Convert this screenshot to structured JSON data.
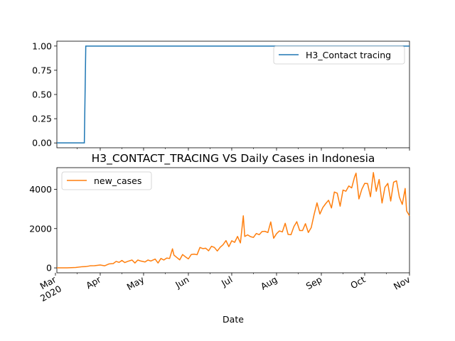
{
  "chart_data": [
    {
      "type": "line",
      "title": "",
      "xlabel": "",
      "ylabel": "",
      "ylim": [
        -0.05,
        1.05
      ],
      "yticks": [
        "0.00",
        "0.25",
        "0.50",
        "0.75",
        "1.00"
      ],
      "legend_position": "top-right",
      "x_range": [
        "2020-03-02",
        "2020-11-01"
      ],
      "series": [
        {
          "name": "H3_Contact tracing",
          "color": "#1f77b4",
          "points": [
            [
              "2020-03-02",
              0
            ],
            [
              "2020-03-21",
              0
            ],
            [
              "2020-03-22",
              1
            ],
            [
              "2020-11-01",
              1
            ]
          ]
        }
      ]
    },
    {
      "type": "line",
      "title": "H3_CONTACT_TRACING VS Daily Cases in Indonesia",
      "xlabel": "Date",
      "ylabel": "",
      "ylim": [
        -250,
        5100
      ],
      "yticks": [
        "0",
        "2000",
        "4000"
      ],
      "legend_position": "top-left",
      "x_range": [
        "2020-03-02",
        "2020-11-01"
      ],
      "xticks": [
        {
          "date": "2020-03-01",
          "label": "Mar",
          "sublabel": "2020"
        },
        {
          "date": "2020-04-01",
          "label": "Apr"
        },
        {
          "date": "2020-05-01",
          "label": "May"
        },
        {
          "date": "2020-06-01",
          "label": "Jun"
        },
        {
          "date": "2020-07-01",
          "label": "Jul"
        },
        {
          "date": "2020-08-01",
          "label": "Aug"
        },
        {
          "date": "2020-09-01",
          "label": "Sep"
        },
        {
          "date": "2020-10-01",
          "label": "Oct"
        },
        {
          "date": "2020-11-01",
          "label": "Nov"
        }
      ],
      "series": [
        {
          "name": "new_cases",
          "color": "#ff7f0e",
          "points": [
            [
              "2020-03-02",
              2
            ],
            [
              "2020-03-09",
              4
            ],
            [
              "2020-03-15",
              21
            ],
            [
              "2020-03-19",
              55
            ],
            [
              "2020-03-22",
              64
            ],
            [
              "2020-03-25",
              105
            ],
            [
              "2020-03-28",
              110
            ],
            [
              "2020-04-01",
              149
            ],
            [
              "2020-04-04",
              106
            ],
            [
              "2020-04-07",
              200
            ],
            [
              "2020-04-10",
              220
            ],
            [
              "2020-04-12",
              330
            ],
            [
              "2020-04-14",
              280
            ],
            [
              "2020-04-16",
              380
            ],
            [
              "2020-04-18",
              270
            ],
            [
              "2020-04-20",
              330
            ],
            [
              "2020-04-23",
              400
            ],
            [
              "2020-04-25",
              250
            ],
            [
              "2020-04-27",
              400
            ],
            [
              "2020-04-29",
              350
            ],
            [
              "2020-05-02",
              300
            ],
            [
              "2020-05-04",
              400
            ],
            [
              "2020-05-06",
              350
            ],
            [
              "2020-05-09",
              450
            ],
            [
              "2020-05-11",
              250
            ],
            [
              "2020-05-13",
              480
            ],
            [
              "2020-05-15",
              400
            ],
            [
              "2020-05-17",
              500
            ],
            [
              "2020-05-19",
              480
            ],
            [
              "2020-05-21",
              970
            ],
            [
              "2020-05-22",
              650
            ],
            [
              "2020-05-24",
              530
            ],
            [
              "2020-05-26",
              410
            ],
            [
              "2020-05-28",
              680
            ],
            [
              "2020-05-30",
              560
            ],
            [
              "2020-06-01",
              460
            ],
            [
              "2020-06-03",
              680
            ],
            [
              "2020-06-05",
              700
            ],
            [
              "2020-06-07",
              670
            ],
            [
              "2020-06-09",
              1040
            ],
            [
              "2020-06-11",
              980
            ],
            [
              "2020-06-13",
              1000
            ],
            [
              "2020-06-15",
              870
            ],
            [
              "2020-06-17",
              1100
            ],
            [
              "2020-06-19",
              1040
            ],
            [
              "2020-06-21",
              860
            ],
            [
              "2020-06-23",
              1050
            ],
            [
              "2020-06-25",
              1180
            ],
            [
              "2020-06-27",
              1390
            ],
            [
              "2020-06-29",
              1080
            ],
            [
              "2020-07-01",
              1380
            ],
            [
              "2020-07-03",
              1300
            ],
            [
              "2020-07-05",
              1600
            ],
            [
              "2020-07-07",
              1270
            ],
            [
              "2020-07-09",
              2650
            ],
            [
              "2020-07-10",
              1600
            ],
            [
              "2020-07-12",
              1680
            ],
            [
              "2020-07-14",
              1590
            ],
            [
              "2020-07-16",
              1550
            ],
            [
              "2020-07-18",
              1750
            ],
            [
              "2020-07-20",
              1690
            ],
            [
              "2020-07-22",
              1850
            ],
            [
              "2020-07-24",
              1860
            ],
            [
              "2020-07-26",
              1800
            ],
            [
              "2020-07-28",
              2340
            ],
            [
              "2020-07-30",
              1510
            ],
            [
              "2020-08-01",
              1740
            ],
            [
              "2020-08-03",
              1880
            ],
            [
              "2020-08-05",
              1830
            ],
            [
              "2020-08-07",
              2270
            ],
            [
              "2020-08-09",
              1700
            ],
            [
              "2020-08-11",
              1690
            ],
            [
              "2020-08-13",
              2100
            ],
            [
              "2020-08-15",
              2350
            ],
            [
              "2020-08-17",
              1900
            ],
            [
              "2020-08-19",
              1900
            ],
            [
              "2020-08-21",
              2250
            ],
            [
              "2020-08-23",
              1800
            ],
            [
              "2020-08-25",
              2050
            ],
            [
              "2020-08-27",
              2720
            ],
            [
              "2020-08-29",
              3310
            ],
            [
              "2020-08-31",
              2740
            ],
            [
              "2020-09-02",
              3070
            ],
            [
              "2020-09-04",
              3270
            ],
            [
              "2020-09-06",
              3440
            ],
            [
              "2020-09-08",
              3050
            ],
            [
              "2020-09-10",
              3860
            ],
            [
              "2020-09-12",
              3800
            ],
            [
              "2020-09-14",
              3140
            ],
            [
              "2020-09-16",
              3960
            ],
            [
              "2020-09-18",
              3900
            ],
            [
              "2020-09-20",
              4170
            ],
            [
              "2020-09-22",
              4070
            ],
            [
              "2020-09-24",
              4630
            ],
            [
              "2020-09-25",
              4820
            ],
            [
              "2020-09-27",
              3510
            ],
            [
              "2020-09-29",
              4000
            ],
            [
              "2020-10-01",
              4300
            ],
            [
              "2020-10-03",
              4290
            ],
            [
              "2020-10-05",
              3620
            ],
            [
              "2020-10-07",
              4850
            ],
            [
              "2020-10-09",
              3900
            ],
            [
              "2020-10-11",
              4500
            ],
            [
              "2020-10-13",
              3300
            ],
            [
              "2020-10-15",
              4100
            ],
            [
              "2020-10-17",
              4300
            ],
            [
              "2020-10-19",
              3400
            ],
            [
              "2020-10-21",
              4360
            ],
            [
              "2020-10-23",
              4430
            ],
            [
              "2020-10-25",
              3600
            ],
            [
              "2020-10-27",
              3230
            ],
            [
              "2020-10-29",
              4040
            ],
            [
              "2020-10-30",
              2900
            ],
            [
              "2020-11-01",
              2650
            ]
          ]
        }
      ]
    }
  ]
}
